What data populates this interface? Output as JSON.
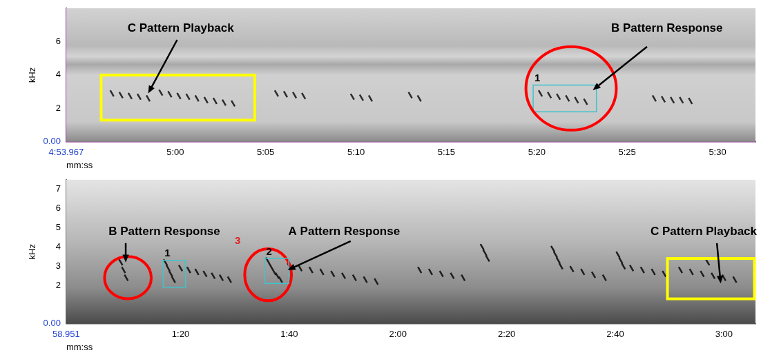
{
  "chart_data": [
    {
      "type": "scatter",
      "x_label": "mm:ss",
      "y_label": "kHz",
      "xlim": [
        293.967,
        332.1
      ],
      "xticks": [
        {
          "value": 293.967,
          "label": "4:53.967"
        },
        {
          "value": 300,
          "label": "5:00"
        },
        {
          "value": 305,
          "label": "5:05"
        },
        {
          "value": 310,
          "label": "5:10"
        },
        {
          "value": 315,
          "label": "5:15"
        },
        {
          "value": 320,
          "label": "5:20"
        },
        {
          "value": 325,
          "label": "5:25"
        },
        {
          "value": 330,
          "label": "5:30"
        }
      ],
      "ylim": [
        0,
        8
      ],
      "yticks": [
        {
          "value": 0,
          "label": "0.00"
        },
        2,
        4,
        6
      ],
      "grid": false,
      "color": "#2b2b2b",
      "syllables": {
        "x": [
          296.5,
          297.0,
          297.5,
          298.0,
          298.5,
          299.2,
          299.7,
          300.2,
          300.7,
          301.2,
          301.7,
          302.2,
          302.7,
          303.2,
          305.6,
          306.1,
          306.6,
          307.1,
          309.8,
          310.3,
          310.8,
          313.0,
          313.5,
          320.2,
          320.7,
          321.2,
          321.7,
          322.2,
          322.7,
          326.5,
          327.0,
          327.5,
          328.0,
          328.5
        ],
        "y": [
          2.9,
          2.8,
          2.75,
          2.7,
          2.6,
          2.95,
          2.85,
          2.75,
          2.7,
          2.6,
          2.5,
          2.45,
          2.35,
          2.3,
          2.9,
          2.85,
          2.8,
          2.75,
          2.7,
          2.65,
          2.6,
          2.8,
          2.6,
          2.9,
          2.8,
          2.7,
          2.6,
          2.5,
          2.4,
          2.6,
          2.55,
          2.5,
          2.5,
          2.45
        ]
      },
      "shapes": [
        {
          "shape": "rectangle",
          "x": [
            295.9,
            304.4
          ],
          "y": [
            1.3,
            4.0
          ],
          "color": "#ffff00"
        },
        {
          "shape": "rectangle",
          "x": [
            319.8,
            323.3
          ],
          "y": [
            1.8,
            3.4
          ],
          "color": "#3fc4cc",
          "label": "1"
        },
        {
          "shape": "ellipse",
          "x": [
            319.4,
            324.4
          ],
          "y": [
            0.7,
            5.7
          ],
          "color": "#ff0000"
        }
      ],
      "annotations": [
        {
          "text": "C Pattern Playback",
          "x": 300.3,
          "y": 6.8,
          "color": "#000000"
        },
        {
          "text": "B Pattern Response",
          "x": 327.2,
          "y": 6.8,
          "color": "#000000"
        }
      ],
      "arrows": [
        {
          "from": [
            300.1,
            6.1
          ],
          "to": [
            298.5,
            2.9
          ],
          "color": "#000000"
        },
        {
          "from": [
            326.1,
            5.7
          ],
          "to": [
            323.1,
            3.1
          ],
          "color": "#000000"
        }
      ]
    },
    {
      "type": "scatter",
      "x_label": "mm:ss",
      "y_label": "kHz",
      "xlim": [
        58.951,
        185.8
      ],
      "xticks": [
        {
          "value": 58.951,
          "label": "58.951"
        },
        {
          "value": 80,
          "label": "1:20"
        },
        {
          "value": 100,
          "label": "1:40"
        },
        {
          "value": 120,
          "label": "2:00"
        },
        {
          "value": 140,
          "label": "2:20"
        },
        {
          "value": 160,
          "label": "2:40"
        },
        {
          "value": 180,
          "label": "3:00"
        }
      ],
      "ylim": [
        0,
        7.5
      ],
      "yticks": [
        {
          "value": 0,
          "label": "0.00"
        },
        2,
        3,
        4,
        5,
        6,
        7
      ],
      "grid": false,
      "color": "#1e1e1e",
      "syllables": {
        "x": [
          69.0,
          69.5,
          70.0,
          77.2,
          77.7,
          78.2,
          78.7,
          80.0,
          81.5,
          83.0,
          84.5,
          86.0,
          87.5,
          89.0,
          96.0,
          96.6,
          97.2,
          97.8,
          98.4,
          100,
          102,
          104,
          106,
          108,
          110,
          112,
          114,
          116,
          124,
          126,
          128,
          130,
          132,
          135.5,
          136.0,
          136.5,
          148.5,
          149.0,
          149.5,
          150,
          152,
          154,
          156,
          158,
          160.5,
          161.0,
          161.5,
          163,
          165,
          167,
          169,
          172,
          174,
          176,
          177,
          178,
          180,
          182
        ],
        "y": [
          3.2,
          2.8,
          2.4,
          3.2,
          2.9,
          2.6,
          2.3,
          2.9,
          2.8,
          2.7,
          2.6,
          2.5,
          2.4,
          2.3,
          3.3,
          3.0,
          2.7,
          2.5,
          2.3,
          3.0,
          2.9,
          2.8,
          2.7,
          2.6,
          2.5,
          2.4,
          2.3,
          2.2,
          2.8,
          2.7,
          2.6,
          2.5,
          2.4,
          4.0,
          3.7,
          3.4,
          3.9,
          3.6,
          3.3,
          3.0,
          2.85,
          2.7,
          2.55,
          2.4,
          3.6,
          3.3,
          3.0,
          2.9,
          2.8,
          2.7,
          2.6,
          2.8,
          2.7,
          2.6,
          3.2,
          2.5,
          2.4,
          2.3
        ]
      },
      "shapes": [
        {
          "shape": "ellipse",
          "x": [
            66.0,
            74.6
          ],
          "y": [
            1.3,
            3.5
          ],
          "color": "#ff0000"
        },
        {
          "shape": "rectangle",
          "x": [
            76.8,
            80.9
          ],
          "y": [
            1.9,
            3.3
          ],
          "color": "#3fc4cc",
          "label": "1"
        },
        {
          "shape": "ellipse",
          "x": [
            91.8,
            100.4
          ],
          "y": [
            1.2,
            3.9
          ],
          "color": "#ff0000"
        },
        {
          "shape": "rectangle",
          "x": [
            95.5,
            99.9
          ],
          "y": [
            2.1,
            3.4
          ],
          "color": "#3fc4cc",
          "label": "2"
        },
        {
          "shape": "rectangle",
          "x": [
            169.6,
            185.6
          ],
          "y": [
            1.3,
            3.4
          ],
          "color": "#ffff00"
        }
      ],
      "annotations": [
        {
          "text": "B Pattern Response",
          "x": 77.0,
          "y": 4.8,
          "color": "#000000"
        },
        {
          "text": "A Pattern Response",
          "x": 110.1,
          "y": 4.8,
          "color": "#000000"
        },
        {
          "text": "C Pattern Playback",
          "x": 177.4,
          "y": 4.8,
          "color": "#000000"
        },
        {
          "text": "3",
          "x": 90.5,
          "y": 4.3,
          "color": "#e02020"
        }
      ],
      "arrows": [
        {
          "from": [
            69.9,
            4.2
          ],
          "to": [
            69.9,
            3.2
          ],
          "color": "#000000"
        },
        {
          "from": [
            111.3,
            4.3
          ],
          "to": [
            99.7,
            2.8
          ],
          "color": "#000000"
        },
        {
          "from": [
            178.7,
            4.2
          ],
          "to": [
            179.4,
            2.1
          ],
          "color": "#000000"
        }
      ]
    }
  ]
}
